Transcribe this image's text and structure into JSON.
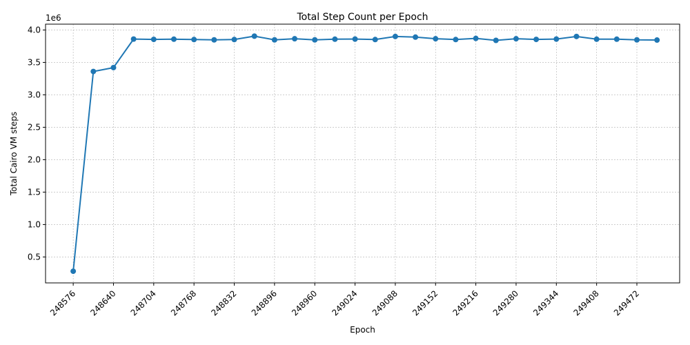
{
  "chart_data": {
    "type": "line",
    "title": "Total Step Count per Epoch",
    "xlabel": "Epoch",
    "ylabel": "Total Cairo VM steps",
    "y_offset_label": "1e6",
    "x_ticks": [
      248576,
      248640,
      248704,
      248768,
      248832,
      248896,
      248960,
      249024,
      249088,
      249152,
      249216,
      249280,
      249344,
      249408,
      249472
    ],
    "y_ticks": [
      0.5,
      1.0,
      1.5,
      2.0,
      2.5,
      3.0,
      3.5,
      4.0
    ],
    "y_tick_labels": [
      "0.5",
      "1.0",
      "1.5",
      "2.0",
      "2.5",
      "3.0",
      "3.5",
      "4.0"
    ],
    "xlim": [
      248532,
      249540
    ],
    "ylim": [
      0.1,
      4.09
    ],
    "grid": true,
    "series": [
      {
        "color": "#1f77b4",
        "x": [
          248576,
          248608,
          248640,
          248672,
          248704,
          248736,
          248768,
          248800,
          248832,
          248864,
          248896,
          248928,
          248960,
          248992,
          249024,
          249056,
          249088,
          249120,
          249152,
          249184,
          249216,
          249248,
          249280,
          249312,
          249344,
          249376,
          249408,
          249440,
          249472,
          249504
        ],
        "y": [
          0.28,
          3.36,
          3.42,
          3.86,
          3.855,
          3.858,
          3.853,
          3.848,
          3.853,
          3.905,
          3.848,
          3.865,
          3.848,
          3.858,
          3.86,
          3.853,
          3.9,
          3.89,
          3.865,
          3.853,
          3.87,
          3.84,
          3.865,
          3.855,
          3.86,
          3.9,
          3.858,
          3.858,
          3.848,
          3.845
        ]
      }
    ]
  }
}
